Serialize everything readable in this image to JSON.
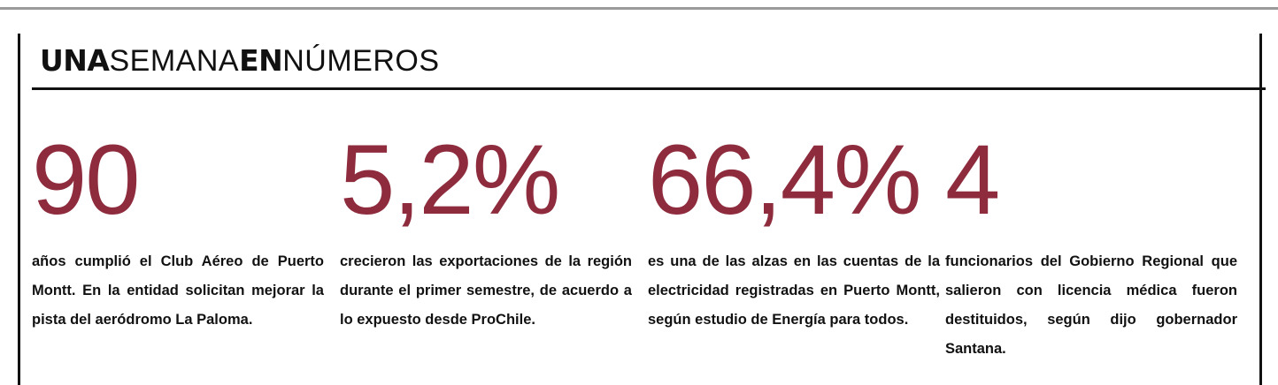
{
  "header": {
    "title_parts": [
      "UNA",
      "SEMANA",
      "EN",
      "NÚMEROS"
    ]
  },
  "colors": {
    "accent": "#8e2c3e",
    "text": "#111111",
    "rule": "#111111",
    "top_rule": "#9a9a9a"
  },
  "stats": [
    {
      "number": "90",
      "text": "años cumplió el Club Aéreo de Puerto Montt. En la entidad solicitan mejorar la pista del aeródromo La Paloma."
    },
    {
      "number": "5,2%",
      "text": "crecieron las exportaciones de la región durante el primer semestre, de acuerdo a lo expuesto desde ProChile."
    },
    {
      "number": "66,4%",
      "text": "es una de las alzas en las cuentas de la electricidad registradas en Puerto Montt, según estudio de Energía para todos."
    },
    {
      "number": "4",
      "text": "funcionarios del Gobierno Regional que salieron con licencia médica fueron destituidos, según dijo gobernador Santana."
    }
  ]
}
